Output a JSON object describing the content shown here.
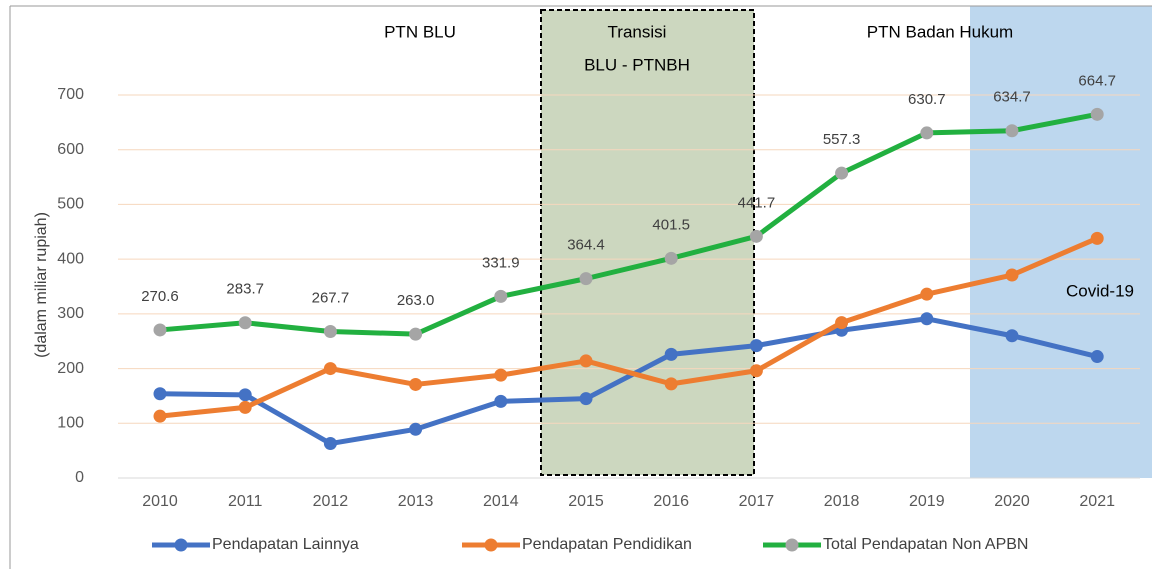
{
  "chart_data": {
    "type": "line",
    "y_label": "(dalam miliar rupiah)",
    "categories": [
      "2010",
      "2011",
      "2012",
      "2013",
      "2014",
      "2015",
      "2016",
      "2017",
      "2018",
      "2019",
      "2020",
      "2021"
    ],
    "series": [
      {
        "name": "Pendapatan Lainnya",
        "color": "#4472c4",
        "marker_color": "#4472c4",
        "values": [
          154,
          152,
          63,
          89,
          140,
          145,
          226,
          242,
          270,
          291,
          260,
          222
        ]
      },
      {
        "name": "Pendapatan Pendidikan",
        "color": "#ed7d31",
        "marker_color": "#ed7d31",
        "values": [
          113,
          129,
          200,
          171,
          188,
          214,
          172,
          196,
          284,
          336,
          371,
          438
        ]
      },
      {
        "name": "Total Pendapatan Non APBN",
        "color": "#22b040",
        "marker_color": "#a5a5a5",
        "values": [
          270.6,
          283.7,
          267.7,
          263.0,
          331.9,
          364.4,
          401.5,
          441.7,
          557.3,
          630.7,
          634.7,
          664.7
        ],
        "value_labels": [
          "270.6",
          "283.7",
          "267.7",
          "263.0",
          "331.9",
          "364.4",
          "401.5",
          "441.7",
          "557.3",
          "630.7",
          "634.7",
          "664.7"
        ]
      }
    ],
    "annotations": [
      "PTN BLU",
      "Transisi",
      "BLU - PTNBH",
      "PTN Badan Hukum",
      "Covid-19"
    ],
    "ylim": [
      0,
      700
    ],
    "yticks": [
      0,
      100,
      200,
      300,
      400,
      500,
      600,
      700
    ],
    "grid": true,
    "legend": "bottom"
  }
}
